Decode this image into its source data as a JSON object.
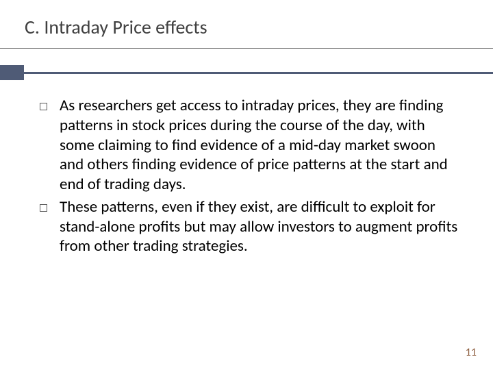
{
  "slide": {
    "title": "C. Intraday Price effects",
    "title_fontsize": 28,
    "title_color": "#404040",
    "underline_color": "#707070",
    "accent_color": "#4f5b76",
    "background_color": "#ffffff",
    "bullets": [
      {
        "text": "As researchers get access to intraday prices, they are finding patterns in stock prices during the course of the day, with some claiming to find evidence of a mid-day market swoon and others finding evidence of price patterns at the start and end of trading days."
      },
      {
        "text": "These patterns, even if they exist, are difficult to exploit for stand-alone profits but may allow investors to augment profits from other trading strategies."
      }
    ],
    "bullet_fontsize": 23,
    "bullet_text_color": "#000000",
    "bullet_marker_border_color": "#5a5a5a",
    "page_number": "11",
    "page_number_color": "#8a5a3a",
    "page_number_fontsize": 16
  }
}
